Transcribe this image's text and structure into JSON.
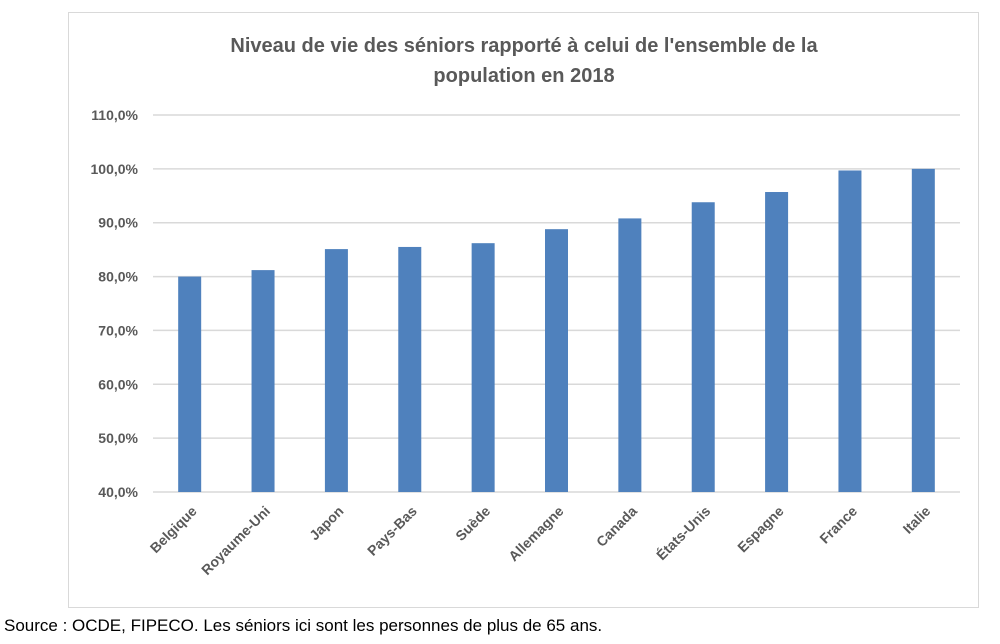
{
  "chart_data": {
    "type": "bar",
    "title": "Niveau de vie des séniors rapporté à celui de l'ensemble de la population  en 2018",
    "title_lines": [
      "Niveau de vie des séniors rapporté à celui de l'ensemble de la",
      "population  en 2018"
    ],
    "categories": [
      "Belgique",
      "Royaume-Uni",
      "Japon",
      "Pays-Bas",
      "Suède",
      "Allemagne",
      "Canada",
      "États-Unis",
      "Espagne",
      "France",
      "Italie"
    ],
    "values": [
      80.0,
      81.2,
      85.1,
      85.5,
      86.2,
      88.8,
      90.8,
      93.8,
      95.7,
      99.7,
      100.0
    ],
    "unit": "%",
    "xlabel": "",
    "ylabel": "",
    "ylim": [
      40,
      110
    ],
    "yticks": [
      "40,0%",
      "50,0%",
      "60,0%",
      "70,0%",
      "80,0%",
      "90,0%",
      "100,0%",
      "110,0%"
    ],
    "grid": true,
    "legend": "none",
    "bar_color": "#4f81bd"
  },
  "source": "Source : OCDE, FIPECO. Les séniors ici sont les personnes de plus de 65 ans."
}
